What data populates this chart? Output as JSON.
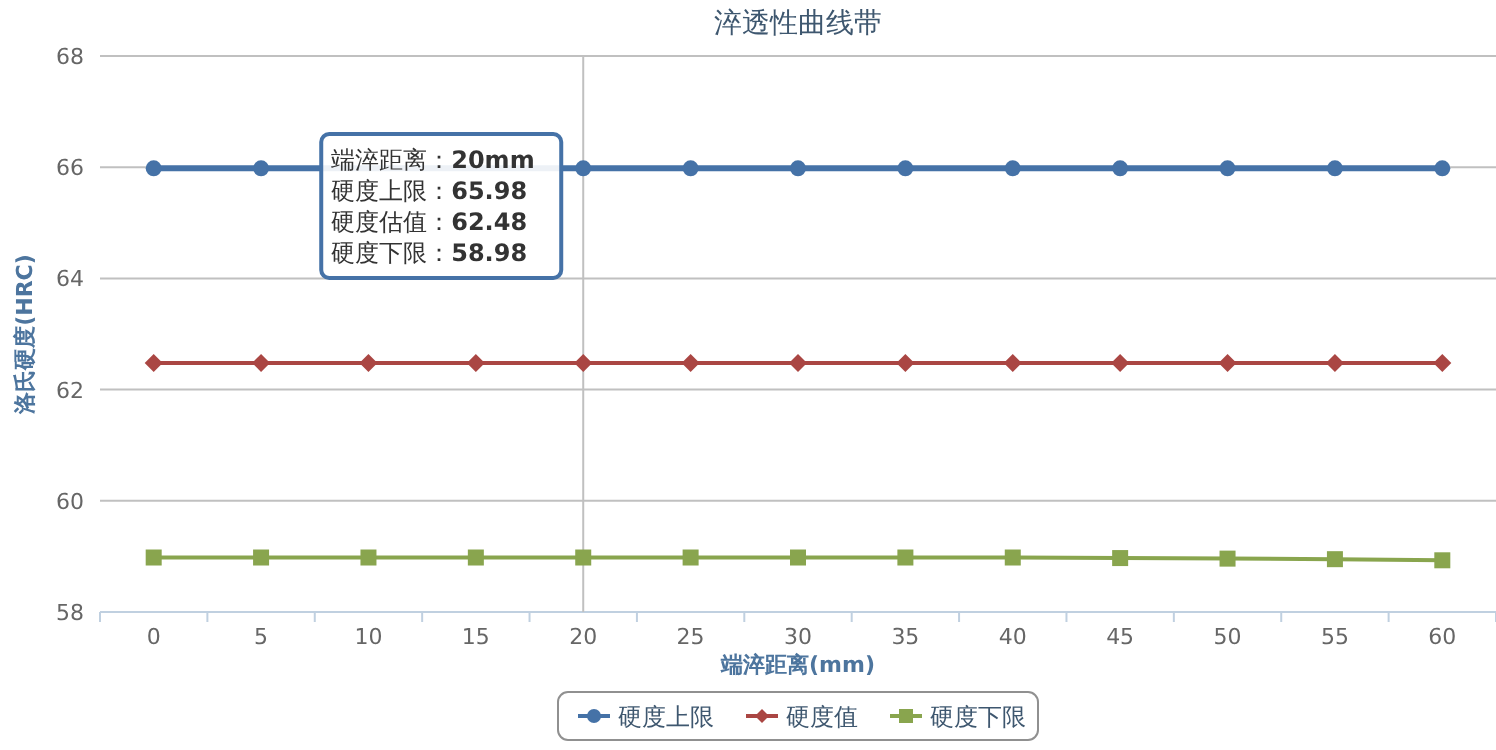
{
  "chart_data": {
    "type": "line",
    "title": "淬透性曲线带",
    "xlabel": "端淬距离(mm)",
    "ylabel": "洛氏硬度(HRC)",
    "categories": [
      "0",
      "5",
      "10",
      "15",
      "20",
      "25",
      "30",
      "35",
      "40",
      "45",
      "50",
      "55",
      "60"
    ],
    "series": [
      {
        "name": "硬度上限",
        "color": "#4572a7",
        "marker": "circle",
        "values": [
          65.98,
          65.98,
          null,
          null,
          65.98,
          65.98,
          65.98,
          65.98,
          65.98,
          65.98,
          65.98,
          65.98,
          65.98
        ]
      },
      {
        "name": "硬度值",
        "color": "#aa4643",
        "marker": "diamond",
        "values": [
          62.48,
          62.48,
          62.48,
          62.48,
          62.48,
          62.48,
          62.48,
          62.48,
          62.48,
          62.48,
          62.48,
          62.48,
          62.48
        ]
      },
      {
        "name": "硬度下限",
        "color": "#89a54e",
        "marker": "square",
        "values": [
          58.98,
          58.98,
          58.98,
          58.98,
          58.98,
          58.98,
          58.98,
          58.98,
          58.98,
          58.97,
          58.96,
          58.95,
          58.93
        ]
      }
    ],
    "ylim": [
      58,
      68
    ],
    "yticks": [
      58,
      60,
      62,
      64,
      66,
      68
    ],
    "grid": "y",
    "legend": "bottom",
    "ref_lines": [
      {
        "axis": "x",
        "value": "20",
        "color": "#c0c0c0"
      }
    ],
    "annotations": [
      "端淬距离：**20mm**",
      "硬度上限：**65.98**",
      "硬度估值：**62.48**",
      "硬度下限：**58.98**"
    ]
  }
}
